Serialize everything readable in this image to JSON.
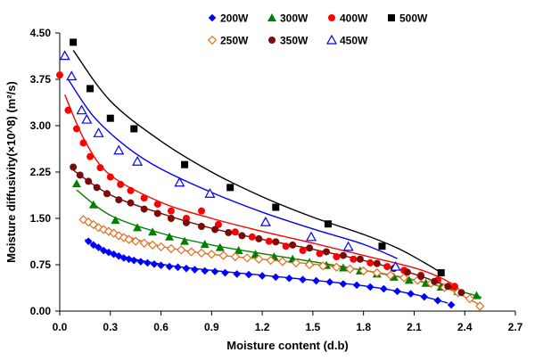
{
  "chart_data": {
    "type": "scatter",
    "title": "",
    "xlabel": "Moisture content (d.b)",
    "ylabel": "Moisture diffusivity(×10^8) (m²/s)",
    "xlim": [
      0,
      2.7
    ],
    "ylim": [
      0,
      4.5
    ],
    "xticks": [
      "0.0",
      "0.3",
      "0.6",
      "0.9",
      "1.2",
      "1.5",
      "1.8",
      "2.1",
      "2.4",
      "2.7"
    ],
    "yticks": [
      "0.00",
      "0.75",
      "1.50",
      "2.25",
      "3.00",
      "3.75",
      "4.50"
    ],
    "legend_position": "top-right",
    "series": [
      {
        "name": "200W",
        "color": "#0000ff",
        "marker": "diamond-filled",
        "points": [
          [
            0.17,
            1.13
          ],
          [
            0.2,
            1.07
          ],
          [
            0.23,
            1.03
          ],
          [
            0.26,
            0.98
          ],
          [
            0.29,
            0.95
          ],
          [
            0.32,
            0.92
          ],
          [
            0.35,
            0.89
          ],
          [
            0.38,
            0.86
          ],
          [
            0.41,
            0.84
          ],
          [
            0.44,
            0.82
          ],
          [
            0.48,
            0.8
          ],
          [
            0.52,
            0.78
          ],
          [
            0.56,
            0.76
          ],
          [
            0.6,
            0.74
          ],
          [
            0.65,
            0.72
          ],
          [
            0.7,
            0.71
          ],
          [
            0.75,
            0.69
          ],
          [
            0.8,
            0.67
          ],
          [
            0.86,
            0.65
          ],
          [
            0.92,
            0.64
          ],
          [
            0.98,
            0.62
          ],
          [
            1.05,
            0.6
          ],
          [
            1.12,
            0.59
          ],
          [
            1.2,
            0.57
          ],
          [
            1.28,
            0.55
          ],
          [
            1.36,
            0.53
          ],
          [
            1.44,
            0.51
          ],
          [
            1.52,
            0.49
          ],
          [
            1.6,
            0.47
          ],
          [
            1.68,
            0.44
          ],
          [
            1.76,
            0.42
          ],
          [
            1.84,
            0.39
          ],
          [
            1.92,
            0.36
          ],
          [
            2.0,
            0.32
          ],
          [
            2.08,
            0.28
          ],
          [
            2.16,
            0.23
          ],
          [
            2.24,
            0.17
          ],
          [
            2.32,
            0.1
          ]
        ],
        "fit": [
          [
            0.15,
            1.16
          ],
          [
            0.3,
            0.94
          ],
          [
            0.6,
            0.76
          ],
          [
            0.9,
            0.66
          ],
          [
            1.2,
            0.58
          ],
          [
            1.5,
            0.5
          ],
          [
            1.8,
            0.41
          ],
          [
            2.1,
            0.27
          ],
          [
            2.3,
            0.13
          ]
        ]
      },
      {
        "name": "300W",
        "color": "#008000",
        "marker": "triangle-filled",
        "points": [
          [
            0.1,
            2.06
          ],
          [
            0.2,
            1.72
          ],
          [
            0.33,
            1.47
          ],
          [
            0.46,
            1.35
          ],
          [
            0.55,
            1.28
          ],
          [
            0.65,
            1.2
          ],
          [
            0.74,
            1.13
          ],
          [
            0.86,
            1.08
          ],
          [
            0.95,
            1.03
          ],
          [
            1.06,
            0.98
          ],
          [
            1.16,
            0.92
          ],
          [
            1.27,
            0.88
          ],
          [
            1.38,
            0.84
          ],
          [
            1.48,
            0.79
          ],
          [
            1.58,
            0.74
          ],
          [
            1.68,
            0.7
          ],
          [
            1.78,
            0.65
          ],
          [
            1.88,
            0.6
          ],
          [
            1.98,
            0.55
          ],
          [
            2.07,
            0.5
          ],
          [
            2.17,
            0.45
          ],
          [
            2.26,
            0.39
          ],
          [
            2.36,
            0.32
          ],
          [
            2.47,
            0.25
          ]
        ],
        "fit": [
          [
            0.1,
            1.96
          ],
          [
            0.3,
            1.55
          ],
          [
            0.6,
            1.26
          ],
          [
            0.9,
            1.07
          ],
          [
            1.2,
            0.93
          ],
          [
            1.5,
            0.8
          ],
          [
            1.8,
            0.66
          ],
          [
            2.1,
            0.5
          ],
          [
            2.4,
            0.3
          ],
          [
            2.5,
            0.22
          ]
        ]
      },
      {
        "name": "400W",
        "color": "#ff0000",
        "marker": "circle-filled",
        "points": [
          [
            0.0,
            3.82
          ],
          [
            0.05,
            3.25
          ],
          [
            0.1,
            2.95
          ],
          [
            0.14,
            2.72
          ],
          [
            0.18,
            2.5
          ],
          [
            0.24,
            2.32
          ],
          [
            0.3,
            2.17
          ],
          [
            0.36,
            2.05
          ],
          [
            0.42,
            1.95
          ],
          [
            0.5,
            1.83
          ],
          [
            0.58,
            1.73
          ],
          [
            0.66,
            1.62
          ],
          [
            0.75,
            1.5
          ],
          [
            0.84,
            1.62
          ],
          [
            0.94,
            1.4
          ],
          [
            1.04,
            1.28
          ],
          [
            1.14,
            1.2
          ],
          [
            1.24,
            1.13
          ],
          [
            1.34,
            1.05
          ],
          [
            1.44,
            0.98
          ],
          [
            1.54,
            0.93
          ],
          [
            1.64,
            0.88
          ],
          [
            1.74,
            0.84
          ],
          [
            1.84,
            0.78
          ],
          [
            1.94,
            0.72
          ],
          [
            2.04,
            0.66
          ],
          [
            2.14,
            0.58
          ],
          [
            2.24,
            0.5
          ],
          [
            2.34,
            0.4
          ]
        ],
        "fit": [
          [
            0.03,
            3.5
          ],
          [
            0.15,
            2.75
          ],
          [
            0.3,
            2.2
          ],
          [
            0.6,
            1.76
          ],
          [
            0.9,
            1.5
          ],
          [
            1.2,
            1.29
          ],
          [
            1.5,
            1.1
          ],
          [
            1.8,
            0.9
          ],
          [
            2.1,
            0.7
          ],
          [
            2.25,
            0.55
          ],
          [
            2.35,
            0.4
          ]
        ]
      },
      {
        "name": "500W",
        "color": "#000000",
        "marker": "square-filled",
        "points": [
          [
            0.08,
            4.35
          ],
          [
            0.18,
            3.6
          ],
          [
            0.3,
            3.12
          ],
          [
            0.44,
            2.95
          ],
          [
            0.74,
            2.37
          ],
          [
            1.01,
            2.0
          ],
          [
            1.28,
            1.68
          ],
          [
            1.59,
            1.41
          ],
          [
            1.91,
            1.05
          ],
          [
            2.26,
            0.62
          ]
        ],
        "fit": [
          [
            0.08,
            4.22
          ],
          [
            0.3,
            3.4
          ],
          [
            0.6,
            2.75
          ],
          [
            0.9,
            2.25
          ],
          [
            1.2,
            1.85
          ],
          [
            1.5,
            1.52
          ],
          [
            1.8,
            1.24
          ],
          [
            2.0,
            1.02
          ],
          [
            2.15,
            0.8
          ],
          [
            2.26,
            0.62
          ]
        ]
      },
      {
        "name": "250W",
        "color": "#e07020",
        "marker": "diamond-open",
        "points": [
          [
            0.14,
            1.48
          ],
          [
            0.17,
            1.44
          ],
          [
            0.2,
            1.4
          ],
          [
            0.23,
            1.35
          ],
          [
            0.26,
            1.32
          ],
          [
            0.29,
            1.29
          ],
          [
            0.32,
            1.26
          ],
          [
            0.35,
            1.22
          ],
          [
            0.38,
            1.19
          ],
          [
            0.41,
            1.16
          ],
          [
            0.45,
            1.13
          ],
          [
            0.5,
            1.1
          ],
          [
            0.55,
            1.07
          ],
          [
            0.6,
            1.04
          ],
          [
            0.66,
            1.01
          ],
          [
            0.72,
            0.99
          ],
          [
            0.78,
            0.96
          ],
          [
            0.84,
            0.94
          ],
          [
            0.9,
            0.92
          ],
          [
            0.97,
            0.9
          ],
          [
            1.04,
            0.88
          ],
          [
            1.11,
            0.86
          ],
          [
            1.18,
            0.84
          ],
          [
            1.25,
            0.82
          ],
          [
            1.32,
            0.8
          ],
          [
            1.4,
            0.78
          ],
          [
            1.48,
            0.75
          ],
          [
            1.56,
            0.73
          ],
          [
            1.64,
            0.71
          ],
          [
            1.72,
            0.68
          ],
          [
            1.8,
            0.65
          ],
          [
            1.88,
            0.62
          ],
          [
            1.96,
            0.58
          ],
          [
            2.04,
            0.54
          ],
          [
            2.12,
            0.5
          ],
          [
            2.2,
            0.45
          ],
          [
            2.28,
            0.38
          ],
          [
            2.36,
            0.3
          ],
          [
            2.43,
            0.2
          ],
          [
            2.49,
            0.08
          ]
        ],
        "fit": [
          [
            0.13,
            1.5
          ],
          [
            0.3,
            1.3
          ],
          [
            0.6,
            1.05
          ],
          [
            0.9,
            0.92
          ],
          [
            1.2,
            0.84
          ],
          [
            1.5,
            0.76
          ],
          [
            1.8,
            0.66
          ],
          [
            2.1,
            0.51
          ],
          [
            2.3,
            0.36
          ],
          [
            2.49,
            0.1
          ]
        ]
      },
      {
        "name": "350W",
        "color": "#7b0a0a",
        "marker": "circle-filled",
        "points": [
          [
            0.08,
            2.33
          ],
          [
            0.12,
            2.2
          ],
          [
            0.17,
            2.1
          ],
          [
            0.22,
            2.0
          ],
          [
            0.28,
            1.9
          ],
          [
            0.35,
            1.8
          ],
          [
            0.42,
            1.75
          ],
          [
            0.5,
            1.65
          ],
          [
            0.58,
            1.58
          ],
          [
            0.66,
            1.5
          ],
          [
            0.75,
            1.43
          ],
          [
            0.84,
            1.37
          ],
          [
            0.92,
            1.32
          ],
          [
            1.0,
            1.27
          ],
          [
            1.08,
            1.22
          ],
          [
            1.18,
            1.17
          ],
          [
            1.28,
            1.12
          ],
          [
            1.38,
            1.07
          ],
          [
            1.48,
            1.02
          ],
          [
            1.58,
            0.96
          ],
          [
            1.68,
            0.9
          ],
          [
            1.78,
            0.84
          ],
          [
            1.88,
            0.77
          ],
          [
            1.98,
            0.69
          ],
          [
            2.06,
            0.63
          ],
          [
            2.14,
            0.56
          ],
          [
            2.22,
            0.48
          ],
          [
            2.3,
            0.4
          ],
          [
            2.38,
            0.3
          ]
        ],
        "fit": [
          [
            0.08,
            2.28
          ],
          [
            0.3,
            1.88
          ],
          [
            0.6,
            1.58
          ],
          [
            0.9,
            1.34
          ],
          [
            1.2,
            1.16
          ],
          [
            1.5,
            1.0
          ],
          [
            1.8,
            0.82
          ],
          [
            2.1,
            0.6
          ],
          [
            2.3,
            0.4
          ],
          [
            2.38,
            0.3
          ]
        ]
      },
      {
        "name": "450W",
        "color": "#0000ff",
        "marker": "triangle-open",
        "points": [
          [
            0.03,
            4.13
          ],
          [
            0.07,
            3.8
          ],
          [
            0.13,
            3.25
          ],
          [
            0.16,
            3.1
          ],
          [
            0.23,
            2.88
          ],
          [
            0.35,
            2.6
          ],
          [
            0.46,
            2.42
          ],
          [
            0.71,
            2.08
          ],
          [
            0.89,
            1.9
          ],
          [
            1.22,
            1.44
          ],
          [
            1.49,
            1.2
          ],
          [
            1.71,
            1.04
          ],
          [
            1.99,
            0.72
          ]
        ],
        "fit": [
          [
            0.05,
            3.75
          ],
          [
            0.2,
            3.15
          ],
          [
            0.4,
            2.65
          ],
          [
            0.6,
            2.3
          ],
          [
            0.9,
            1.92
          ],
          [
            1.2,
            1.6
          ],
          [
            1.5,
            1.33
          ],
          [
            1.8,
            1.08
          ],
          [
            2.0,
            0.85
          ]
        ]
      }
    ]
  }
}
